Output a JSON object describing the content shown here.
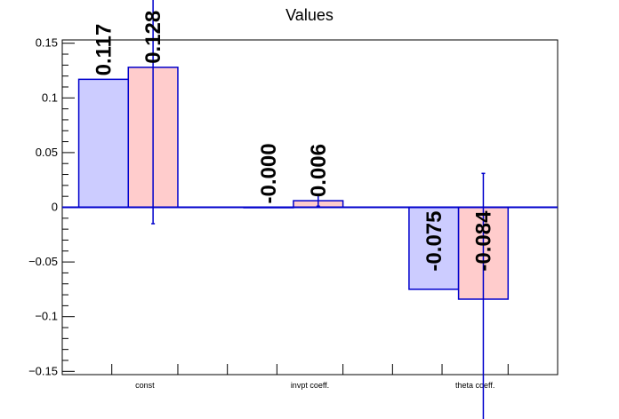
{
  "chart_data": {
    "type": "bar",
    "title": "Values",
    "categories": [
      "const",
      "invpt coeff.",
      "theta coeff."
    ],
    "ylim": [
      -0.153,
      0.153
    ],
    "y_ticks": [
      {
        "value": 0.15,
        "label": "0.15"
      },
      {
        "value": 0.1,
        "label": "0.1"
      },
      {
        "value": 0.05,
        "label": "0.05"
      },
      {
        "value": 0,
        "label": "0"
      },
      {
        "value": -0.05,
        "label": "−0.05"
      },
      {
        "value": -0.1,
        "label": "−0.1"
      },
      {
        "value": -0.15,
        "label": "−0.15"
      }
    ],
    "series": [
      {
        "values": [
          0.117,
          0.0,
          -0.075
        ],
        "labels": [
          "0.117",
          "-0.000",
          "-0.075"
        ],
        "errors": [
          0,
          0,
          0
        ],
        "fill": "#ccccff",
        "edge": "#0000cc"
      },
      {
        "values": [
          0.128,
          0.006,
          -0.084
        ],
        "labels": [
          "0.128",
          "0.006",
          "-0.084"
        ],
        "errors": [
          0.143,
          0.005,
          0.115
        ],
        "fill": "#ffcccc",
        "edge": "#0000cc"
      }
    ],
    "grid": false,
    "legend": "none"
  }
}
